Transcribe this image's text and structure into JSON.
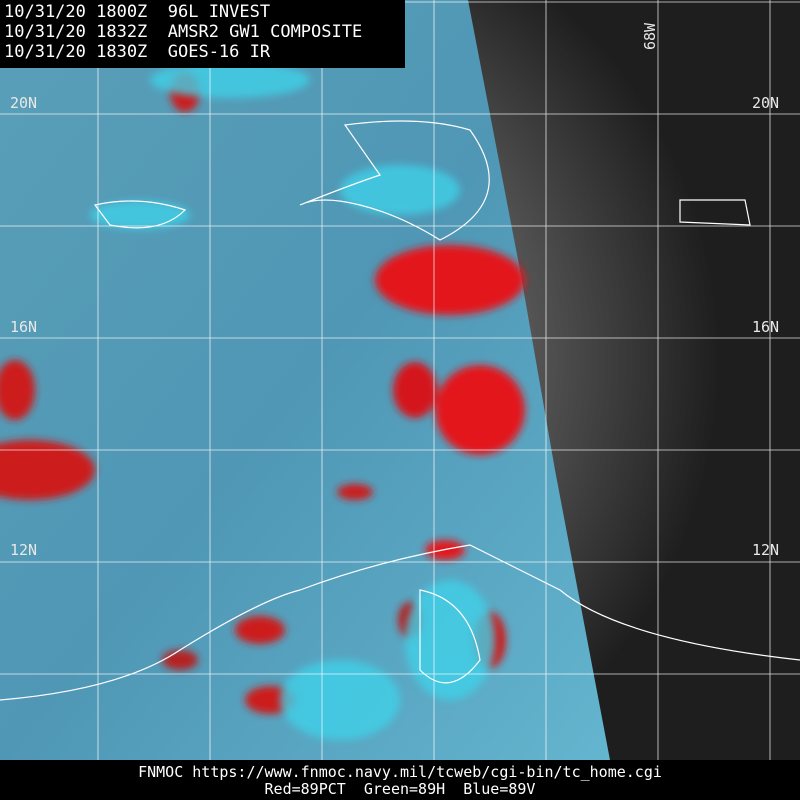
{
  "header": {
    "lines": [
      "10/31/20 1800Z  96L INVEST",
      "10/31/20 1832Z  AMSR2 GW1 COMPOSITE",
      "10/31/20 1830Z  GOES-16 IR"
    ]
  },
  "latitude_labels": [
    "20N",
    "16N",
    "12N"
  ],
  "longitude_labels": [
    "68W"
  ],
  "footer": {
    "source": "FNMOC https://www.fnmoc.navy.mil/tcweb/cgi-bin/tc_home.cgi",
    "channels": "Red=89PCT  Green=89H  Blue=89V"
  }
}
